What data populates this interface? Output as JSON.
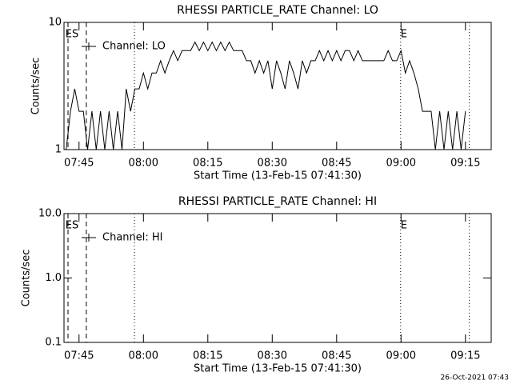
{
  "chart_data": [
    {
      "type": "line",
      "title": "RHESSI PARTICLE_RATE Channel: LO",
      "xlabel": "Start Time (13-Feb-15 07:41:30)",
      "ylabel": "Counts/sec",
      "log_y": true,
      "ylim": [
        1,
        10
      ],
      "yticks": [
        1,
        10
      ],
      "xlim": [
        "07:41:30",
        "09:21:00"
      ],
      "xticks": [
        "07:45",
        "08:00",
        "08:15",
        "08:30",
        "08:45",
        "09:00",
        "09:15"
      ],
      "x": [
        "07:42",
        "07:43",
        "07:44",
        "07:45",
        "07:46",
        "07:47",
        "07:48",
        "07:49",
        "07:50",
        "07:51",
        "07:52",
        "07:53",
        "07:54",
        "07:55",
        "07:56",
        "07:57",
        "07:58",
        "07:59",
        "08:00",
        "08:01",
        "08:02",
        "08:03",
        "08:04",
        "08:05",
        "08:06",
        "08:07",
        "08:08",
        "08:09",
        "08:10",
        "08:11",
        "08:12",
        "08:13",
        "08:14",
        "08:15",
        "08:16",
        "08:17",
        "08:18",
        "08:19",
        "08:20",
        "08:21",
        "08:22",
        "08:23",
        "08:24",
        "08:25",
        "08:26",
        "08:27",
        "08:28",
        "08:29",
        "08:30",
        "08:31",
        "08:32",
        "08:33",
        "08:34",
        "08:35",
        "08:36",
        "08:37",
        "08:38",
        "08:39",
        "08:40",
        "08:41",
        "08:42",
        "08:43",
        "08:44",
        "08:45",
        "08:46",
        "08:47",
        "08:48",
        "08:49",
        "08:50",
        "08:51",
        "08:52",
        "08:53",
        "08:54",
        "08:55",
        "08:56",
        "08:57",
        "08:58",
        "08:59",
        "09:00",
        "09:01",
        "09:02",
        "09:03",
        "09:04",
        "09:05",
        "09:06",
        "09:07",
        "09:08",
        "09:09",
        "09:10",
        "09:11",
        "09:12",
        "09:13",
        "09:14",
        "09:15"
      ],
      "series": [
        {
          "name": "Channel: LO",
          "color": "#000000",
          "values": [
            1,
            2,
            3,
            2,
            2,
            1,
            2,
            1,
            2,
            1,
            2,
            1,
            2,
            1,
            3,
            2,
            3,
            3,
            4,
            3,
            4,
            4,
            5,
            4,
            5,
            6,
            5,
            6,
            6,
            6,
            7,
            6,
            7,
            6,
            7,
            6,
            7,
            6,
            7,
            6,
            6,
            6,
            5,
            5,
            4,
            5,
            4,
            5,
            3,
            5,
            4,
            3,
            5,
            4,
            3,
            5,
            4,
            5,
            5,
            6,
            5,
            6,
            5,
            6,
            5,
            6,
            6,
            5,
            6,
            5,
            5,
            5,
            5,
            5,
            5,
            6,
            5,
            5,
            6,
            4,
            5,
            4,
            3,
            2,
            2,
            2,
            1,
            2,
            1,
            2,
            1,
            2,
            1,
            2
          ]
        }
      ],
      "vlines": [
        {
          "x": "07:42:26",
          "style": "dashed"
        },
        {
          "x": "07:46:42",
          "style": "dashed"
        },
        {
          "x": "07:57:54",
          "style": "dotted"
        },
        {
          "x": "08:59:54",
          "style": "dotted"
        },
        {
          "x": "09:15:54",
          "style": "dotted"
        }
      ],
      "annotations": [
        {
          "text": "ES",
          "x": "07:41:50"
        },
        {
          "text": "E",
          "x": "08:59:54"
        }
      ]
    },
    {
      "type": "line",
      "title": "RHESSI PARTICLE_RATE Channel: HI",
      "xlabel": "Start Time (13-Feb-15 07:41:30)",
      "ylabel": "Counts/sec",
      "log_y": true,
      "ylim": [
        0.1,
        10
      ],
      "yticks": [
        0.1,
        {
          "value": 1,
          "label": "1.0"
        },
        {
          "value": 10,
          "label": "10.0"
        }
      ],
      "xlim": [
        "07:41:30",
        "09:21:00"
      ],
      "xticks": [
        "07:45",
        "08:00",
        "08:15",
        "08:30",
        "08:45",
        "09:00",
        "09:15"
      ],
      "x": [],
      "series": [
        {
          "name": "Channel: HI",
          "color": "#000000",
          "values": []
        }
      ],
      "vlines": [
        {
          "x": "07:42:26",
          "style": "dashed"
        },
        {
          "x": "07:46:42",
          "style": "dashed"
        },
        {
          "x": "07:57:54",
          "style": "dotted"
        },
        {
          "x": "08:59:54",
          "style": "dotted"
        },
        {
          "x": "09:15:54",
          "style": "dotted"
        }
      ],
      "annotations": [
        {
          "text": "ES",
          "x": "07:41:50"
        },
        {
          "text": "E",
          "x": "08:59:54"
        }
      ]
    }
  ],
  "footer": "26-Oct-2021 07:43"
}
